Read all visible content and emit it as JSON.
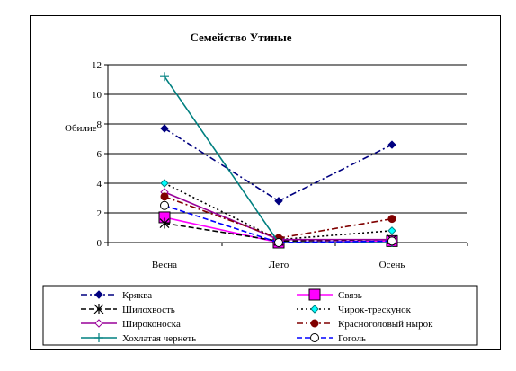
{
  "chart_data": {
    "type": "line",
    "title": "Семейство Утиные",
    "ylabel": "Обилие",
    "xlabel": "",
    "categories": [
      "Весна",
      "Лето",
      "Осень"
    ],
    "ylim": [
      0,
      12
    ],
    "yticks": [
      0,
      2,
      4,
      6,
      8,
      10,
      12
    ],
    "grid": true,
    "legend": "bottom",
    "series": [
      {
        "name": "Кряква",
        "values": [
          7.7,
          2.8,
          6.6
        ],
        "color": "#000080",
        "dash": "dashdot",
        "marker": "diamond-filled"
      },
      {
        "name": "Связь",
        "values": [
          1.7,
          0.0,
          0.1
        ],
        "color": "#ff00ff",
        "dash": "solid",
        "marker": "square-filled"
      },
      {
        "name": "Шилохвость",
        "values": [
          1.3,
          0.1,
          0.2
        ],
        "color": "#000000",
        "dash": "dashed",
        "marker": "asterisk"
      },
      {
        "name": "Чирок-трескунок",
        "values": [
          4.0,
          0.2,
          0.8
        ],
        "color": "#000000",
        "dash": "dotted",
        "marker": "diamond-cyan"
      },
      {
        "name": "Широконоска",
        "values": [
          3.4,
          0.2,
          0.2
        ],
        "color": "#990099",
        "dash": "solid",
        "marker": "diamond-open"
      },
      {
        "name": "Красноголовый нырок",
        "values": [
          3.1,
          0.3,
          1.6
        ],
        "color": "#800000",
        "dash": "dashdot",
        "marker": "circle-filled"
      },
      {
        "name": "Хохлатая чернеть",
        "values": [
          11.2,
          0.0,
          0.0
        ],
        "color": "#008080",
        "dash": "solid",
        "marker": "plus"
      },
      {
        "name": "Гоголь",
        "values": [
          2.5,
          0.0,
          0.1
        ],
        "color": "#0000ff",
        "dash": "dashed",
        "marker": "circle-open"
      }
    ]
  }
}
